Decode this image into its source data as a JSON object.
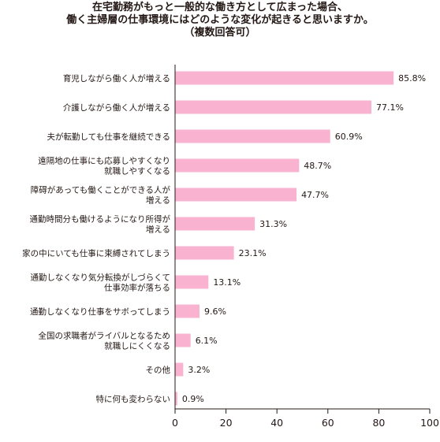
{
  "chart_data": {
    "type": "bar",
    "orientation": "horizontal",
    "title_lines": [
      "在宅勤務がもっと一般的な働き方として広まった場合、",
      "働く主婦層の仕事環境にはどのような変化が起きると思いますか。",
      "（複数回答可）"
    ],
    "categories": [
      [
        "育児しながら働く人が増える"
      ],
      [
        "介護しながら働く人が増える"
      ],
      [
        "夫が転勤しても仕事を継続できる"
      ],
      [
        "遠隔地の仕事にも応募しやすくなり",
        "就職しやすくなる"
      ],
      [
        "障碍があっても働くことができる人が",
        "増える"
      ],
      [
        "通勤時間分も働けるようになり所得が",
        "増える"
      ],
      [
        "家の中にいても仕事に束縛されてしまう"
      ],
      [
        "通勤しなくなり気分転換がしづらくて",
        "仕事効率が落ちる"
      ],
      [
        "通勤しなくなり仕事をサボってしまう"
      ],
      [
        "全国の求職者がライバルとなるため",
        "就職しにくくなる"
      ],
      [
        "その他"
      ],
      [
        "特に何も変わらない"
      ]
    ],
    "values": [
      85.8,
      77.1,
      60.9,
      48.7,
      47.7,
      31.3,
      23.1,
      13.1,
      9.6,
      6.1,
      3.2,
      0.9
    ],
    "value_labels": [
      "85.8%",
      "77.1%",
      "60.9%",
      "48.7%",
      "47.7%",
      "31.3%",
      "23.1%",
      "13.1%",
      "9.6%",
      "6.1%",
      "3.2%",
      "0.9%"
    ],
    "xlim": [
      0,
      100
    ],
    "xticks": [
      "0",
      "20",
      "40",
      "60",
      "80",
      "100"
    ],
    "xtick_values": [
      0,
      20,
      40,
      60,
      80,
      100
    ],
    "bar_color": "#f9b3d1",
    "axis_color": "#231815",
    "grid": false
  }
}
